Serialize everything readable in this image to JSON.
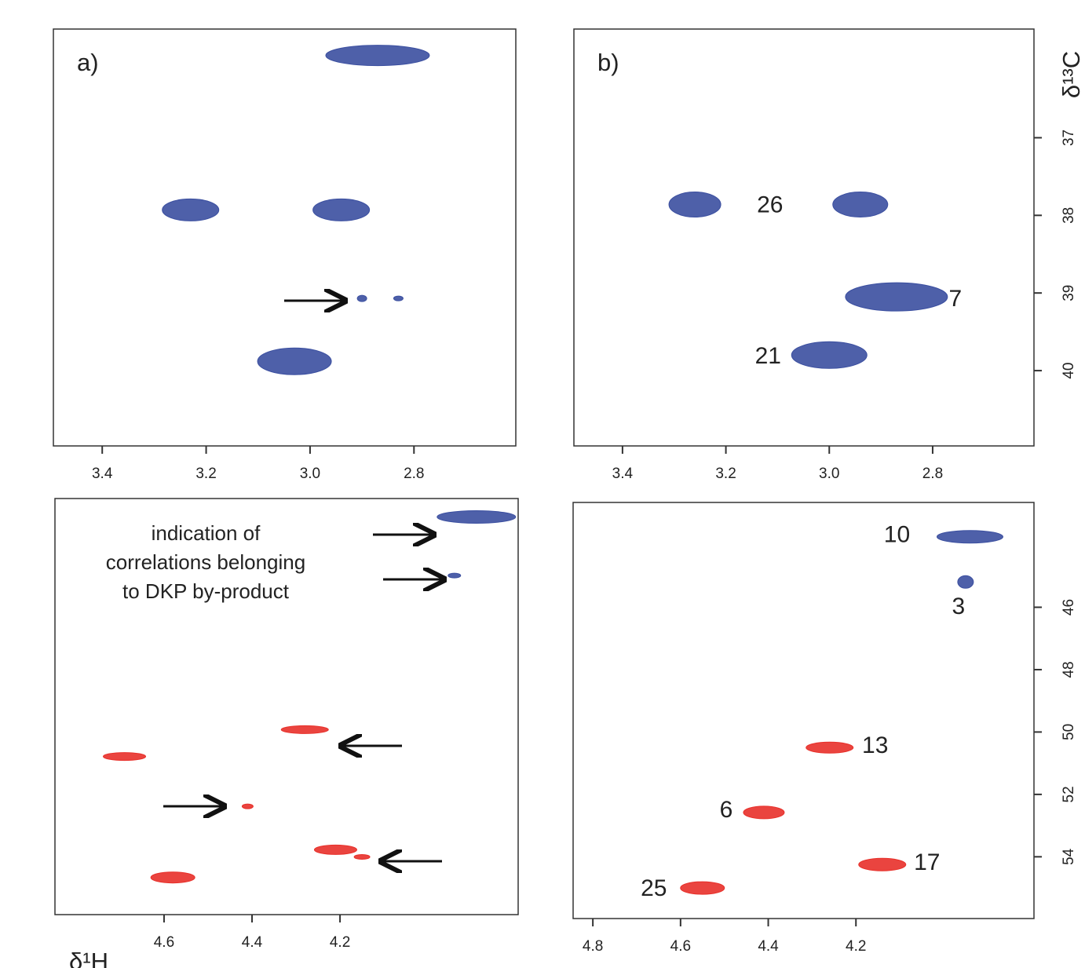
{
  "chart_data": [
    {
      "type": "scatter",
      "title": "a)",
      "xlim": [
        3.494,
        2.604
      ],
      "ylim": [
        35.6,
        40.97
      ],
      "xticks": [
        3.4,
        3.2,
        {
          "value": 3,
          "label": "3.0"
        },
        2.8
      ],
      "x": [
        2.87,
        3.23,
        2.94,
        2.9,
        2.83,
        3.03
      ],
      "y": [
        35.94,
        37.93,
        37.93,
        39.07,
        39.07,
        39.88
      ],
      "colors": [
        "#3b4fa0",
        "#3b4fa0",
        "#3b4fa0",
        "#3b4fa0",
        "#3b4fa0",
        "#3b4fa0"
      ]
    },
    {
      "type": "scatter",
      "title": "b)",
      "ylabel": "δ¹³C",
      "xlim": [
        3.494,
        2.604
      ],
      "ylim": [
        35.6,
        40.97
      ],
      "xticks": [
        3.4,
        3.2,
        {
          "value": 3,
          "label": "3.0"
        },
        2.8
      ],
      "yticks": [
        37,
        38,
        39,
        40
      ],
      "x": [
        3.26,
        2.94,
        2.87,
        3.0
      ],
      "y": [
        37.86,
        37.86,
        39.05,
        39.8
      ],
      "colors": [
        "#3b4fa0",
        "#3b4fa0",
        "#3b4fa0",
        "#3b4fa0"
      ],
      "point_labels": [
        null,
        "26",
        "7",
        "21"
      ]
    },
    {
      "type": "scatter",
      "xlabel": "δ¹H",
      "xlim": [
        4.848,
        3.795
      ],
      "ylim": [
        42.64,
        55.98
      ],
      "xticks": [
        4.6,
        4.4,
        4.2
      ],
      "annotation": [
        "indication of",
        "correlations belonging",
        "to DKP by-product"
      ],
      "x": [
        3.89,
        3.94,
        4.28,
        4.69,
        4.41,
        4.58,
        4.21,
        4.15
      ],
      "y": [
        43.23,
        45.11,
        50.05,
        50.91,
        52.51,
        54.79,
        53.9,
        54.13
      ],
      "colors": [
        "#3b4fa0",
        "#3b4fa0",
        "#e8302a",
        "#e8302a",
        "#e8302a",
        "#e8302a",
        "#e8302a",
        "#e8302a"
      ]
    },
    {
      "type": "scatter",
      "xlim": [
        4.845,
        3.794
      ],
      "ylim": [
        42.64,
        55.98
      ],
      "xticks": [
        4.8,
        4.6,
        4.4,
        4.2
      ],
      "yticks": [
        46,
        48,
        50,
        52,
        54
      ],
      "x": [
        3.94,
        3.95,
        4.26,
        4.41,
        4.14,
        4.55
      ],
      "y": [
        43.74,
        45.19,
        50.5,
        52.58,
        54.25,
        55.0
      ],
      "colors": [
        "#3b4fa0",
        "#3b4fa0",
        "#e8302a",
        "#e8302a",
        "#e8302a",
        "#e8302a"
      ],
      "point_labels": [
        "10",
        "3",
        "13",
        "6",
        "17",
        "25"
      ]
    }
  ]
}
